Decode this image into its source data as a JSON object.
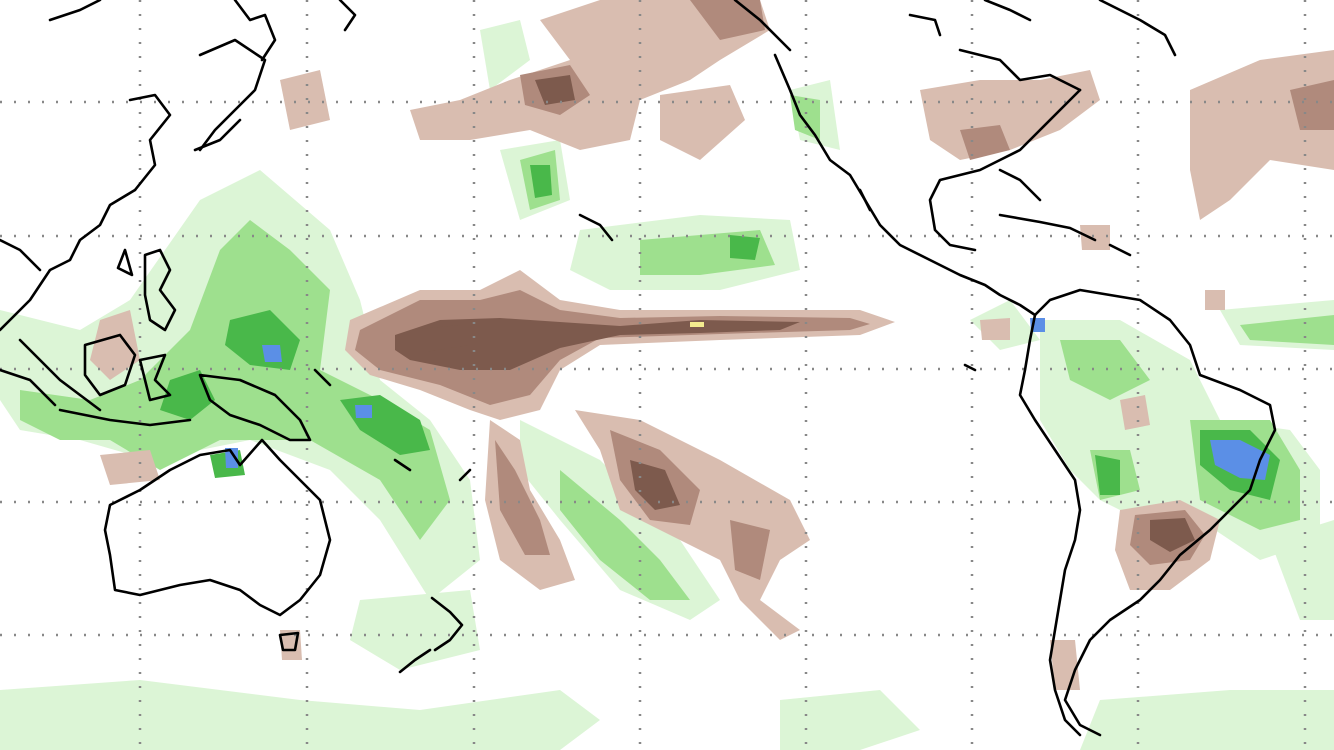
{
  "map": {
    "type": "precipitation anomaly map (Pacific basin)",
    "projection": "equirectangular",
    "gridlines": "dotted",
    "colors": {
      "dry_light": "#d9bdb0",
      "dry_mid": "#b08a7c",
      "dry_strong": "#7d5a4d",
      "wet_light": "#dcf5d6",
      "wet_mid": "#9ee08e",
      "wet_strong": "#49b84a",
      "wet_extreme": "#5b8fe6",
      "max_marker": "#f4ec8f",
      "coastline": "#000000",
      "ocean": "#ffffff"
    }
  }
}
